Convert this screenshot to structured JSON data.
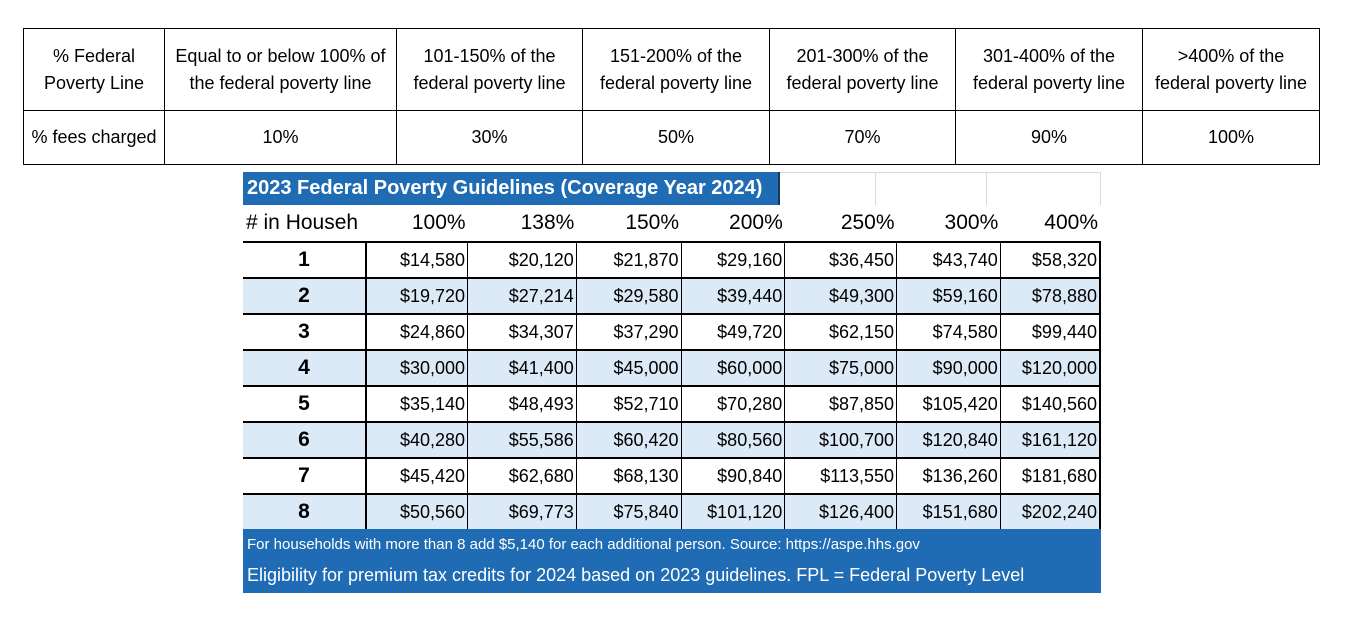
{
  "fee_table": {
    "row1": [
      "% Federal Poverty Line",
      "Equal to or below 100% of the federal poverty line",
      "101-150% of the federal poverty line",
      "151-200% of the federal poverty line",
      "201-300% of the federal poverty line",
      "301-400% of the federal poverty line",
      ">400% of the federal poverty line"
    ],
    "row2": [
      "% fees charged",
      "10%",
      "30%",
      "50%",
      "70%",
      "90%",
      "100%"
    ]
  },
  "fpl": {
    "title": "2023 Federal Poverty Guidelines (Coverage Year 2024)",
    "headers": [
      "# in Househ",
      "100%",
      "138%",
      "150%",
      "200%",
      "250%",
      "300%",
      "400%"
    ],
    "rows": [
      [
        "1",
        "$14,580",
        "$20,120",
        "$21,870",
        "$29,160",
        "$36,450",
        "$43,740",
        "$58,320"
      ],
      [
        "2",
        "$19,720",
        "$27,214",
        "$29,580",
        "$39,440",
        "$49,300",
        "$59,160",
        "$78,880"
      ],
      [
        "3",
        "$24,860",
        "$34,307",
        "$37,290",
        "$49,720",
        "$62,150",
        "$74,580",
        "$99,440"
      ],
      [
        "4",
        "$30,000",
        "$41,400",
        "$45,000",
        "$60,000",
        "$75,000",
        "$90,000",
        "$120,000"
      ],
      [
        "5",
        "$35,140",
        "$48,493",
        "$52,710",
        "$70,280",
        "$87,850",
        "$105,420",
        "$140,560"
      ],
      [
        "6",
        "$40,280",
        "$55,586",
        "$60,420",
        "$80,560",
        "$100,700",
        "$120,840",
        "$161,120"
      ],
      [
        "7",
        "$45,420",
        "$62,680",
        "$68,130",
        "$90,840",
        "$113,550",
        "$136,260",
        "$181,680"
      ],
      [
        "8",
        "$50,560",
        "$69,773",
        "$75,840",
        "$101,120",
        "$126,400",
        "$151,680",
        "$202,240"
      ]
    ],
    "footer_note": "For households with more than 8 add $5,140 for each additional person.  Source: https://aspe.hhs.gov",
    "footer_eligibility": "Eligibility for premium tax credits for 2024 based on 2023 guidelines.  FPL = Federal Poverty Level"
  },
  "colors": {
    "accent_blue": "#1f6cb4",
    "band_light": "#dce9f6"
  }
}
